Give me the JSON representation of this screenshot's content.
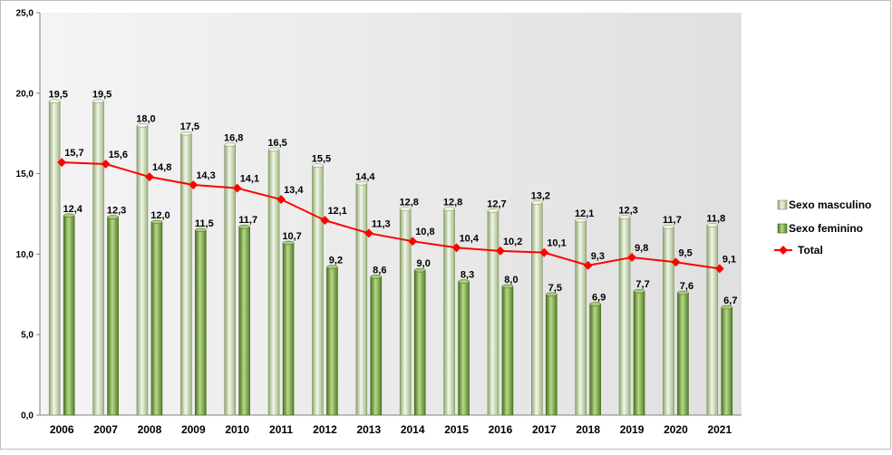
{
  "chart_data": {
    "type": "bar",
    "categories": [
      "2006",
      "2007",
      "2008",
      "2009",
      "2010",
      "2011",
      "2012",
      "2013",
      "2014",
      "2015",
      "2016",
      "2017",
      "2018",
      "2019",
      "2020",
      "2021"
    ],
    "series": [
      {
        "name": "Sexo masculino",
        "type": "bar",
        "color": "#b8c8a0",
        "values": [
          19.5,
          19.5,
          18.0,
          17.5,
          16.8,
          16.5,
          15.5,
          14.4,
          12.8,
          12.8,
          12.7,
          13.2,
          12.1,
          12.3,
          11.7,
          11.8
        ],
        "labels": [
          "19,5",
          "19,5",
          "18,0",
          "17,5",
          "16,8",
          "16,5",
          "15,5",
          "14,4",
          "12,8",
          "12,8",
          "12,7",
          "13,2",
          "12,1",
          "12,3",
          "11,7",
          "11,8"
        ]
      },
      {
        "name": "Sexo feminino",
        "type": "bar",
        "color": "#6e9a32",
        "values": [
          12.4,
          12.3,
          12.0,
          11.5,
          11.7,
          10.7,
          9.2,
          8.6,
          9.0,
          8.3,
          8.0,
          7.5,
          6.9,
          7.7,
          7.6,
          6.7
        ],
        "labels": [
          "12,4",
          "12,3",
          "12,0",
          "11,5",
          "11,7",
          "10,7",
          "9,2",
          "8,6",
          "9,0",
          "8,3",
          "8,0",
          "7,5",
          "6,9",
          "7,7",
          "7,6",
          "6,7"
        ]
      },
      {
        "name": "Total",
        "type": "line",
        "color": "#ff0000",
        "values": [
          15.7,
          15.6,
          14.8,
          14.3,
          14.1,
          13.4,
          12.1,
          11.3,
          10.8,
          10.4,
          10.2,
          10.1,
          9.3,
          9.8,
          9.5,
          9.1
        ],
        "labels": [
          "15,7",
          "15,6",
          "14,8",
          "14,3",
          "14,1",
          "13,4",
          "12,1",
          "11,3",
          "10,8",
          "10,4",
          "10,2",
          "10,1",
          "9,3",
          "9,8",
          "9,5",
          "9,1"
        ]
      }
    ],
    "ylim": [
      0,
      25
    ],
    "yticks": [
      "0,0",
      "5,0",
      "10,0",
      "15,0",
      "20,0",
      "25,0"
    ],
    "xlabel": "",
    "ylabel": "",
    "grid": false,
    "legend": "right"
  }
}
